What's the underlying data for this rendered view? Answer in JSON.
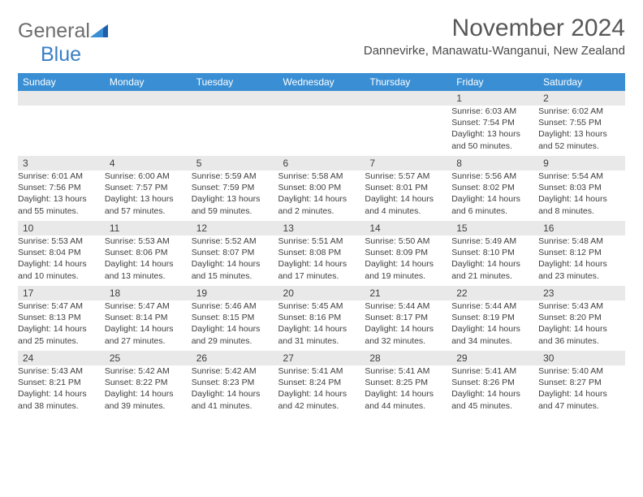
{
  "logo": {
    "part1": "General",
    "part2": "Blue"
  },
  "title": "November 2024",
  "subtitle": "Dannevirke, Manawatu-Wanganui, New Zealand",
  "colors": {
    "header_bg": "#3a8fd4",
    "header_text": "#ffffff",
    "daynum_bg": "#e9e9e9",
    "rule": "#3a7fc4",
    "text": "#3e3e3e",
    "logo_gray": "#6e6e6e",
    "logo_blue": "#3a7fc4"
  },
  "day_headers": [
    "Sunday",
    "Monday",
    "Tuesday",
    "Wednesday",
    "Thursday",
    "Friday",
    "Saturday"
  ],
  "weeks": [
    {
      "nums": [
        "",
        "",
        "",
        "",
        "",
        "1",
        "2"
      ],
      "cells": [
        {
          "empty": true
        },
        {
          "empty": true
        },
        {
          "empty": true
        },
        {
          "empty": true
        },
        {
          "empty": true
        },
        {
          "sunrise": "Sunrise: 6:03 AM",
          "sunset": "Sunset: 7:54 PM",
          "day1": "Daylight: 13 hours",
          "day2": "and 50 minutes."
        },
        {
          "sunrise": "Sunrise: 6:02 AM",
          "sunset": "Sunset: 7:55 PM",
          "day1": "Daylight: 13 hours",
          "day2": "and 52 minutes."
        }
      ]
    },
    {
      "nums": [
        "3",
        "4",
        "5",
        "6",
        "7",
        "8",
        "9"
      ],
      "cells": [
        {
          "sunrise": "Sunrise: 6:01 AM",
          "sunset": "Sunset: 7:56 PM",
          "day1": "Daylight: 13 hours",
          "day2": "and 55 minutes."
        },
        {
          "sunrise": "Sunrise: 6:00 AM",
          "sunset": "Sunset: 7:57 PM",
          "day1": "Daylight: 13 hours",
          "day2": "and 57 minutes."
        },
        {
          "sunrise": "Sunrise: 5:59 AM",
          "sunset": "Sunset: 7:59 PM",
          "day1": "Daylight: 13 hours",
          "day2": "and 59 minutes."
        },
        {
          "sunrise": "Sunrise: 5:58 AM",
          "sunset": "Sunset: 8:00 PM",
          "day1": "Daylight: 14 hours",
          "day2": "and 2 minutes."
        },
        {
          "sunrise": "Sunrise: 5:57 AM",
          "sunset": "Sunset: 8:01 PM",
          "day1": "Daylight: 14 hours",
          "day2": "and 4 minutes."
        },
        {
          "sunrise": "Sunrise: 5:56 AM",
          "sunset": "Sunset: 8:02 PM",
          "day1": "Daylight: 14 hours",
          "day2": "and 6 minutes."
        },
        {
          "sunrise": "Sunrise: 5:54 AM",
          "sunset": "Sunset: 8:03 PM",
          "day1": "Daylight: 14 hours",
          "day2": "and 8 minutes."
        }
      ]
    },
    {
      "nums": [
        "10",
        "11",
        "12",
        "13",
        "14",
        "15",
        "16"
      ],
      "cells": [
        {
          "sunrise": "Sunrise: 5:53 AM",
          "sunset": "Sunset: 8:04 PM",
          "day1": "Daylight: 14 hours",
          "day2": "and 10 minutes."
        },
        {
          "sunrise": "Sunrise: 5:53 AM",
          "sunset": "Sunset: 8:06 PM",
          "day1": "Daylight: 14 hours",
          "day2": "and 13 minutes."
        },
        {
          "sunrise": "Sunrise: 5:52 AM",
          "sunset": "Sunset: 8:07 PM",
          "day1": "Daylight: 14 hours",
          "day2": "and 15 minutes."
        },
        {
          "sunrise": "Sunrise: 5:51 AM",
          "sunset": "Sunset: 8:08 PM",
          "day1": "Daylight: 14 hours",
          "day2": "and 17 minutes."
        },
        {
          "sunrise": "Sunrise: 5:50 AM",
          "sunset": "Sunset: 8:09 PM",
          "day1": "Daylight: 14 hours",
          "day2": "and 19 minutes."
        },
        {
          "sunrise": "Sunrise: 5:49 AM",
          "sunset": "Sunset: 8:10 PM",
          "day1": "Daylight: 14 hours",
          "day2": "and 21 minutes."
        },
        {
          "sunrise": "Sunrise: 5:48 AM",
          "sunset": "Sunset: 8:12 PM",
          "day1": "Daylight: 14 hours",
          "day2": "and 23 minutes."
        }
      ]
    },
    {
      "nums": [
        "17",
        "18",
        "19",
        "20",
        "21",
        "22",
        "23"
      ],
      "cells": [
        {
          "sunrise": "Sunrise: 5:47 AM",
          "sunset": "Sunset: 8:13 PM",
          "day1": "Daylight: 14 hours",
          "day2": "and 25 minutes."
        },
        {
          "sunrise": "Sunrise: 5:47 AM",
          "sunset": "Sunset: 8:14 PM",
          "day1": "Daylight: 14 hours",
          "day2": "and 27 minutes."
        },
        {
          "sunrise": "Sunrise: 5:46 AM",
          "sunset": "Sunset: 8:15 PM",
          "day1": "Daylight: 14 hours",
          "day2": "and 29 minutes."
        },
        {
          "sunrise": "Sunrise: 5:45 AM",
          "sunset": "Sunset: 8:16 PM",
          "day1": "Daylight: 14 hours",
          "day2": "and 31 minutes."
        },
        {
          "sunrise": "Sunrise: 5:44 AM",
          "sunset": "Sunset: 8:17 PM",
          "day1": "Daylight: 14 hours",
          "day2": "and 32 minutes."
        },
        {
          "sunrise": "Sunrise: 5:44 AM",
          "sunset": "Sunset: 8:19 PM",
          "day1": "Daylight: 14 hours",
          "day2": "and 34 minutes."
        },
        {
          "sunrise": "Sunrise: 5:43 AM",
          "sunset": "Sunset: 8:20 PM",
          "day1": "Daylight: 14 hours",
          "day2": "and 36 minutes."
        }
      ]
    },
    {
      "nums": [
        "24",
        "25",
        "26",
        "27",
        "28",
        "29",
        "30"
      ],
      "cells": [
        {
          "sunrise": "Sunrise: 5:43 AM",
          "sunset": "Sunset: 8:21 PM",
          "day1": "Daylight: 14 hours",
          "day2": "and 38 minutes."
        },
        {
          "sunrise": "Sunrise: 5:42 AM",
          "sunset": "Sunset: 8:22 PM",
          "day1": "Daylight: 14 hours",
          "day2": "and 39 minutes."
        },
        {
          "sunrise": "Sunrise: 5:42 AM",
          "sunset": "Sunset: 8:23 PM",
          "day1": "Daylight: 14 hours",
          "day2": "and 41 minutes."
        },
        {
          "sunrise": "Sunrise: 5:41 AM",
          "sunset": "Sunset: 8:24 PM",
          "day1": "Daylight: 14 hours",
          "day2": "and 42 minutes."
        },
        {
          "sunrise": "Sunrise: 5:41 AM",
          "sunset": "Sunset: 8:25 PM",
          "day1": "Daylight: 14 hours",
          "day2": "and 44 minutes."
        },
        {
          "sunrise": "Sunrise: 5:41 AM",
          "sunset": "Sunset: 8:26 PM",
          "day1": "Daylight: 14 hours",
          "day2": "and 45 minutes."
        },
        {
          "sunrise": "Sunrise: 5:40 AM",
          "sunset": "Sunset: 8:27 PM",
          "day1": "Daylight: 14 hours",
          "day2": "and 47 minutes."
        }
      ]
    }
  ]
}
